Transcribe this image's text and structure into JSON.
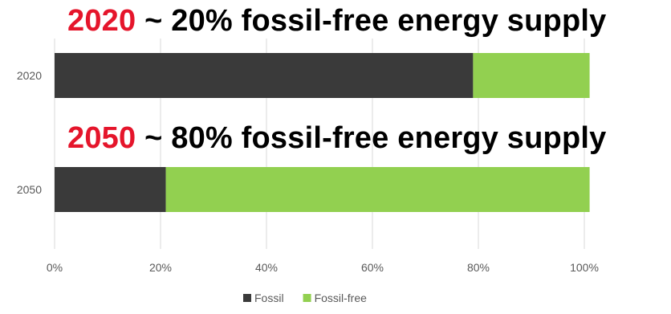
{
  "headlines": [
    {
      "year": "2020",
      "text": " ~ 20% fossil-free energy supply"
    },
    {
      "year": "2050",
      "text": " ~ 80% fossil-free energy supply"
    }
  ],
  "chart_data": {
    "type": "bar",
    "orientation": "horizontal",
    "stacked": true,
    "categories": [
      "2020",
      "2050"
    ],
    "series": [
      {
        "name": "Fossil",
        "values": [
          79,
          21
        ],
        "color": "#3a3a3a"
      },
      {
        "name": "Fossil-free",
        "values": [
          22,
          80
        ],
        "color": "#92d050"
      }
    ],
    "xlim": [
      0,
      100
    ],
    "x_ticks": [
      "0%",
      "20%",
      "40%",
      "60%",
      "80%",
      "100%"
    ],
    "grid": true,
    "legend": "bottom"
  }
}
